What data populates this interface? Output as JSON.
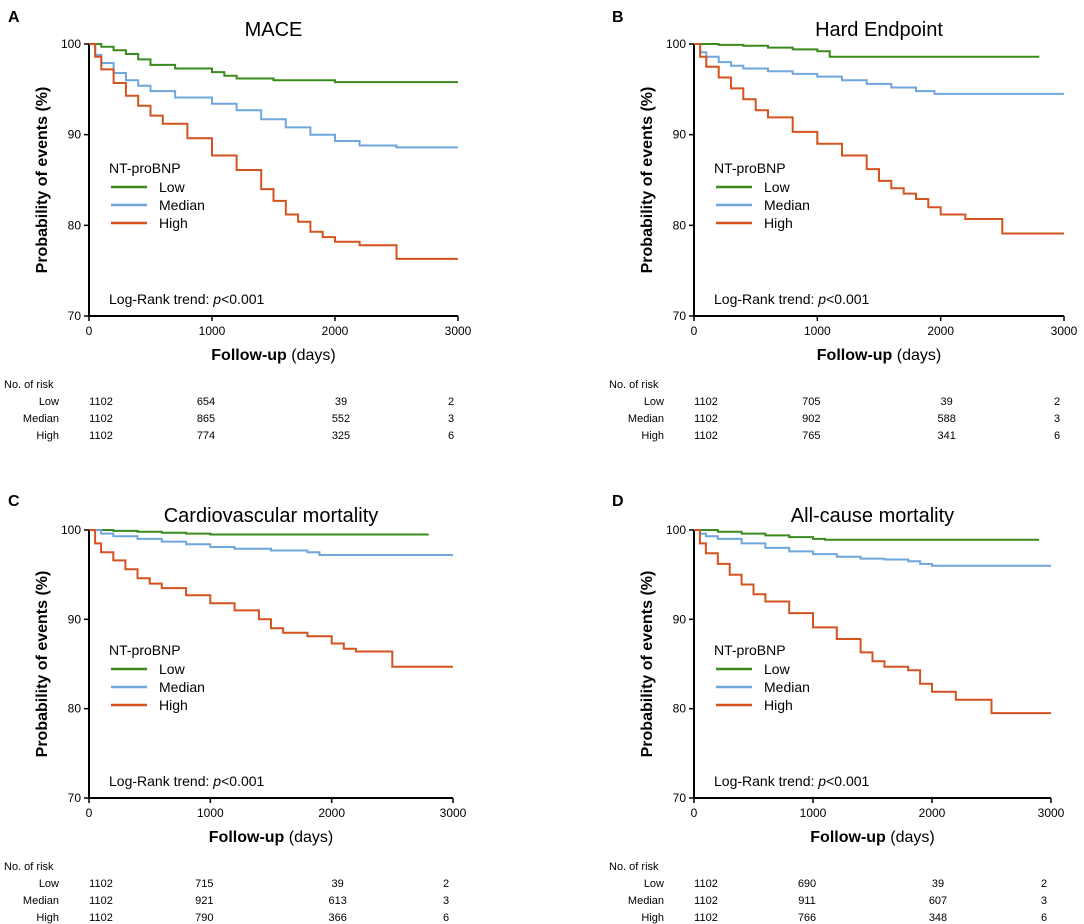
{
  "colors": {
    "Low": "#3a8a1e",
    "Median": "#6fa6dc",
    "High": "#d4531f"
  },
  "chart_data": [
    {
      "panel": "A",
      "type": "line",
      "title": "MACE",
      "xlabel_bold": "Follow-up",
      "xlabel_rest": "(days)",
      "ylabel": "Probability of events (%)",
      "xlim": [
        0,
        3000
      ],
      "ylim": [
        70,
        100
      ],
      "xticks": [
        "0",
        "1000",
        "2000",
        "3000"
      ],
      "yticks": [
        "70",
        "80",
        "90",
        "100"
      ],
      "legend_title": "NT-proBNP",
      "stat_prefix": "Log-Rank trend: ",
      "stat_p": "p",
      "stat_rest": "<0.001",
      "series": [
        {
          "name": "Low",
          "x": [
            0,
            100,
            200,
            300,
            400,
            500,
            700,
            1000,
            1100,
            1200,
            1500,
            2000,
            2500,
            3000
          ],
          "y": [
            100,
            99.7,
            99.3,
            98.9,
            98.3,
            97.7,
            97.3,
            96.9,
            96.5,
            96.2,
            96.0,
            95.8,
            95.8,
            95.8
          ]
        },
        {
          "name": "Median",
          "x": [
            0,
            50,
            100,
            200,
            300,
            400,
            500,
            700,
            1000,
            1200,
            1400,
            1600,
            1800,
            2000,
            2200,
            2500,
            3000
          ],
          "y": [
            100,
            98.8,
            97.9,
            96.8,
            96.0,
            95.4,
            94.8,
            94.1,
            93.4,
            92.7,
            91.7,
            90.8,
            90.0,
            89.3,
            88.8,
            88.6,
            88.6
          ]
        },
        {
          "name": "High",
          "x": [
            0,
            50,
            100,
            200,
            300,
            400,
            500,
            600,
            800,
            1000,
            1200,
            1400,
            1500,
            1600,
            1700,
            1800,
            1900,
            2000,
            2200,
            2400,
            2500,
            2550,
            3000
          ],
          "y": [
            100,
            98.6,
            97.2,
            95.7,
            94.3,
            93.2,
            92.1,
            91.2,
            89.6,
            87.7,
            86.1,
            84.0,
            82.7,
            81.2,
            80.4,
            79.3,
            78.7,
            78.2,
            77.8,
            77.8,
            76.3,
            76.3,
            76.3
          ]
        }
      ],
      "risk_table": {
        "header": "No. of risk",
        "rows": [
          {
            "label": "Low",
            "values": [
              "1102",
              "654",
              "39",
              "2"
            ]
          },
          {
            "label": "Median",
            "values": [
              "1102",
              "865",
              "552",
              "3"
            ]
          },
          {
            "label": "High",
            "values": [
              "1102",
              "774",
              "325",
              "6"
            ]
          }
        ]
      }
    },
    {
      "panel": "B",
      "type": "line",
      "title": "Hard Endpoint",
      "xlabel_bold": "Follow-up",
      "xlabel_rest": "(days)",
      "ylabel": "Probability of events (%)",
      "xlim": [
        0,
        3000
      ],
      "ylim": [
        70,
        100
      ],
      "xticks": [
        "0",
        "1000",
        "2000",
        "3000"
      ],
      "yticks": [
        "70",
        "80",
        "90",
        "100"
      ],
      "legend_title": "NT-proBNP",
      "stat_prefix": "Log-Rank trend: ",
      "stat_p": "p",
      "stat_rest": "<0.001",
      "series": [
        {
          "name": "Low",
          "x": [
            0,
            200,
            400,
            600,
            800,
            1000,
            1100,
            1500,
            2000,
            2500,
            2800
          ],
          "y": [
            100,
            99.9,
            99.8,
            99.6,
            99.4,
            99.2,
            98.6,
            98.6,
            98.6,
            98.6,
            98.6
          ]
        },
        {
          "name": "Median",
          "x": [
            0,
            50,
            100,
            200,
            300,
            400,
            600,
            800,
            1000,
            1200,
            1400,
            1600,
            1800,
            1950,
            2100,
            2500,
            3000
          ],
          "y": [
            100,
            99.1,
            98.6,
            98.0,
            97.6,
            97.3,
            97.0,
            96.7,
            96.4,
            96.0,
            95.6,
            95.2,
            94.8,
            94.5,
            94.5,
            94.5,
            94.5
          ]
        },
        {
          "name": "High",
          "x": [
            0,
            50,
            100,
            200,
            300,
            400,
            500,
            600,
            800,
            1000,
            1200,
            1400,
            1500,
            1600,
            1700,
            1800,
            1900,
            2000,
            2200,
            2450,
            2500,
            3000
          ],
          "y": [
            100,
            98.6,
            97.5,
            96.3,
            95.1,
            93.9,
            92.7,
            91.9,
            90.3,
            89.0,
            87.7,
            86.2,
            84.9,
            84.1,
            83.5,
            82.9,
            82.0,
            81.2,
            80.7,
            80.7,
            79.1,
            79.1
          ]
        }
      ],
      "risk_table": {
        "header": "No. of risk",
        "rows": [
          {
            "label": "Low",
            "values": [
              "1102",
              "705",
              "39",
              "2"
            ]
          },
          {
            "label": "Median",
            "values": [
              "1102",
              "902",
              "588",
              "3"
            ]
          },
          {
            "label": "High",
            "values": [
              "1102",
              "765",
              "341",
              "6"
            ]
          }
        ]
      }
    },
    {
      "panel": "C",
      "type": "line",
      "title": "Cardiovascular mortality",
      "xlabel_bold": "Follow-up",
      "xlabel_rest": "(days)",
      "ylabel": "Probability of events (%)",
      "xlim": [
        0,
        3000
      ],
      "ylim": [
        70,
        100
      ],
      "xticks": [
        "0",
        "1000",
        "2000",
        "3000"
      ],
      "yticks": [
        "70",
        "80",
        "90",
        "100"
      ],
      "legend_title": "NT-proBNP",
      "stat_prefix": "Log-Rank trend: ",
      "stat_p": "p",
      "stat_rest": "<0.001",
      "series": [
        {
          "name": "Low",
          "x": [
            0,
            200,
            400,
            600,
            800,
            1000,
            1100,
            1500,
            2000,
            2500,
            2800
          ],
          "y": [
            100,
            99.9,
            99.8,
            99.7,
            99.6,
            99.5,
            99.5,
            99.5,
            99.5,
            99.5,
            99.5
          ]
        },
        {
          "name": "Median",
          "x": [
            0,
            100,
            200,
            400,
            600,
            800,
            1000,
            1200,
            1500,
            1800,
            1900,
            2200,
            2600,
            3000
          ],
          "y": [
            100,
            99.6,
            99.3,
            99.0,
            98.7,
            98.4,
            98.1,
            97.9,
            97.7,
            97.5,
            97.2,
            97.2,
            97.2,
            97.2
          ]
        },
        {
          "name": "High",
          "x": [
            0,
            50,
            100,
            200,
            300,
            400,
            500,
            600,
            800,
            1000,
            1200,
            1400,
            1500,
            1600,
            1800,
            2000,
            2100,
            2200,
            2400,
            2450,
            2500,
            3000
          ],
          "y": [
            100,
            98.5,
            97.5,
            96.6,
            95.6,
            94.6,
            94.0,
            93.5,
            92.7,
            91.8,
            91.0,
            90.0,
            89.0,
            88.5,
            88.1,
            87.3,
            86.7,
            86.4,
            86.4,
            86.4,
            84.7,
            84.7
          ]
        }
      ],
      "risk_table": {
        "header": "No. of risk",
        "rows": [
          {
            "label": "Low",
            "values": [
              "1102",
              "715",
              "39",
              "2"
            ]
          },
          {
            "label": "Median",
            "values": [
              "1102",
              "921",
              "613",
              "3"
            ]
          },
          {
            "label": "High",
            "values": [
              "1102",
              "790",
              "366",
              "6"
            ]
          }
        ]
      }
    },
    {
      "panel": "D",
      "type": "line",
      "title": "All-cause mortality",
      "xlabel_bold": "Follow-up",
      "xlabel_rest": "(days)",
      "ylabel": "Probability of events (%)",
      "xlim": [
        0,
        3000
      ],
      "ylim": [
        70,
        100
      ],
      "xticks": [
        "0",
        "1000",
        "2000",
        "3000"
      ],
      "yticks": [
        "70",
        "80",
        "90",
        "100"
      ],
      "legend_title": "NT-proBNP",
      "stat_prefix": "Log-Rank trend: ",
      "stat_p": "p",
      "stat_rest": "<0.001",
      "series": [
        {
          "name": "Low",
          "x": [
            0,
            200,
            400,
            600,
            800,
            1000,
            1100,
            1500,
            2000,
            2500,
            2900
          ],
          "y": [
            100,
            99.8,
            99.6,
            99.4,
            99.2,
            99.0,
            98.9,
            98.9,
            98.9,
            98.9,
            98.9
          ]
        },
        {
          "name": "Median",
          "x": [
            0,
            50,
            100,
            200,
            400,
            600,
            800,
            1000,
            1200,
            1400,
            1600,
            1800,
            1900,
            2000,
            2300,
            2600,
            3000
          ],
          "y": [
            100,
            99.6,
            99.3,
            99.0,
            98.5,
            98.0,
            97.6,
            97.3,
            97.0,
            96.8,
            96.7,
            96.5,
            96.2,
            96.0,
            96.0,
            96.0,
            96.0
          ]
        },
        {
          "name": "High",
          "x": [
            0,
            50,
            100,
            200,
            300,
            400,
            500,
            600,
            800,
            1000,
            1200,
            1400,
            1500,
            1600,
            1800,
            1900,
            2000,
            2200,
            2450,
            2500,
            3000
          ],
          "y": [
            100,
            98.5,
            97.4,
            96.2,
            95.0,
            93.9,
            92.8,
            92.0,
            90.7,
            89.1,
            87.8,
            86.3,
            85.3,
            84.7,
            84.3,
            82.8,
            81.9,
            81.0,
            81.0,
            79.5,
            79.5
          ]
        }
      ],
      "risk_table": {
        "header": "No. of risk",
        "rows": [
          {
            "label": "Low",
            "values": [
              "1102",
              "690",
              "39",
              "2"
            ]
          },
          {
            "label": "Median",
            "values": [
              "1102",
              "911",
              "607",
              "3"
            ]
          },
          {
            "label": "High",
            "values": [
              "1102",
              "766",
              "348",
              "6"
            ]
          }
        ]
      }
    }
  ]
}
